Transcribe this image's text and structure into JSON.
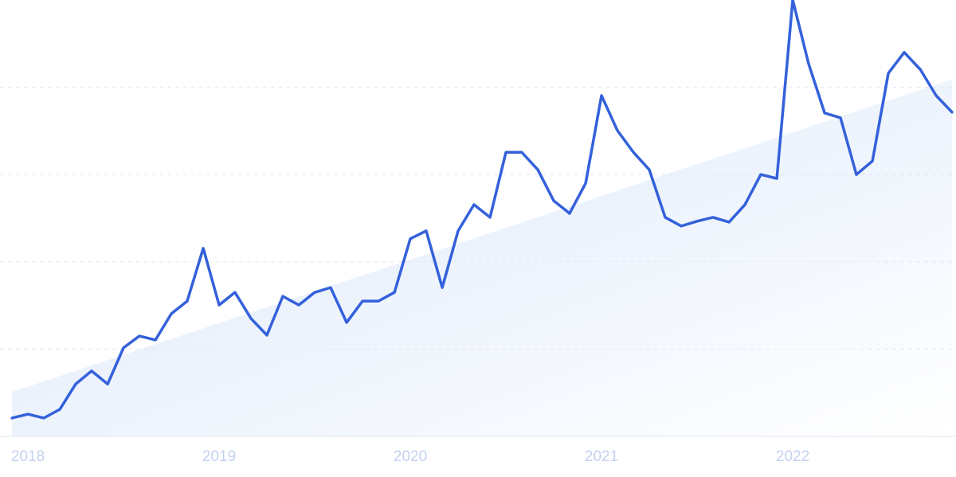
{
  "chart_data": {
    "type": "line",
    "x": [
      2017.917,
      2018,
      2018.083,
      2018.167,
      2018.25,
      2018.333,
      2018.417,
      2018.5,
      2018.583,
      2018.667,
      2018.75,
      2018.833,
      2018.917,
      2019,
      2019.083,
      2019.167,
      2019.25,
      2019.333,
      2019.417,
      2019.5,
      2019.583,
      2019.667,
      2019.75,
      2019.833,
      2019.917,
      2020,
      2020.083,
      2020.167,
      2020.25,
      2020.333,
      2020.417,
      2020.5,
      2020.583,
      2020.667,
      2020.75,
      2020.833,
      2020.917,
      2021,
      2021.083,
      2021.167,
      2021.25,
      2021.333,
      2021.417,
      2021.5,
      2021.583,
      2021.667,
      2021.75,
      2021.833,
      2021.917,
      2022,
      2022.083,
      2022.167,
      2022.25,
      2022.333,
      2022.417,
      2022.5,
      2022.583,
      2022.667,
      2022.75,
      2022.833
    ],
    "series": [
      {
        "color": "#3461db",
        "values": [
          4.2,
          5.1,
          4.2,
          6.2,
          12.0,
          15.0,
          12.0,
          20.3,
          23.0,
          22.1,
          28.1,
          31.0,
          43.1,
          30.1,
          33.0,
          27.0,
          23.2,
          32.1,
          30.1,
          33.0,
          34.1,
          26.1,
          31.0,
          31.0,
          33.0,
          45.3,
          47.1,
          34.1,
          47.1,
          53.1,
          50.2,
          65.1,
          65.1,
          61.1,
          54.0,
          51.1,
          58.0,
          78.1,
          70.1,
          65.1,
          61.1,
          50.2,
          48.2,
          49.3,
          50.2,
          49.1,
          53.1,
          60.0,
          59.1,
          100,
          85.4,
          74.1,
          73.0,
          60.0,
          63.1,
          83.2,
          88.0,
          84.1,
          78.1,
          74.3
        ]
      }
    ],
    "trend": {
      "color": "#dbe8fa",
      "values": [
        10.2,
        81.8
      ]
    },
    "xlim": [
      2017.854,
      2022.854
    ],
    "xticks": [
      2018,
      2019,
      2020,
      2021,
      2022
    ],
    "ylim": [
      0,
      100
    ],
    "yticks": [
      0,
      20,
      40,
      60,
      80
    ],
    "grid": true
  }
}
